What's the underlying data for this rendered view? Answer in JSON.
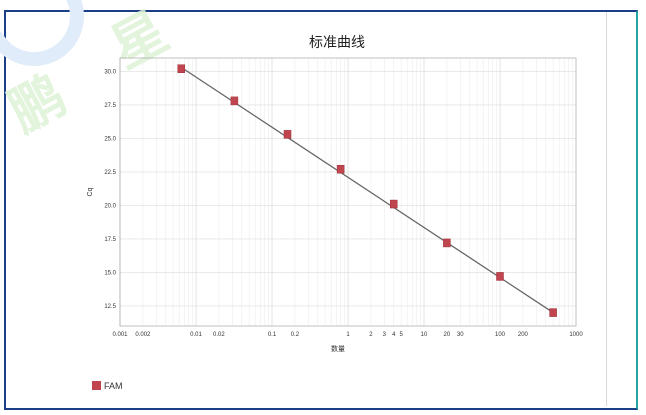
{
  "watermark": {
    "char1": "鹏",
    "char2": "星"
  },
  "chart_data": {
    "type": "scatter",
    "title": "标准曲线",
    "xlabel": "数量",
    "ylabel": "Cq",
    "x_scale": "log",
    "xlim": [
      0.001,
      1000
    ],
    "ylim": [
      11.0,
      31.0
    ],
    "grid": true,
    "x_ticks": [
      {
        "value": 0.001,
        "label": "0.001"
      },
      {
        "value": 0.002,
        "label": "0.002"
      },
      {
        "value": 0.01,
        "label": "0.01"
      },
      {
        "value": 0.02,
        "label": "0.02"
      },
      {
        "value": 0.1,
        "label": "0.1"
      },
      {
        "value": 0.2,
        "label": "0.2"
      },
      {
        "value": 1,
        "label": "1"
      },
      {
        "value": 2,
        "label": "2"
      },
      {
        "value": 3,
        "label": "3"
      },
      {
        "value": 4,
        "label": "4"
      },
      {
        "value": 5,
        "label": "5"
      },
      {
        "value": 10,
        "label": "10"
      },
      {
        "value": 20,
        "label": "20"
      },
      {
        "value": 30,
        "label": "30"
      },
      {
        "value": 100,
        "label": "100"
      },
      {
        "value": 200,
        "label": "200"
      },
      {
        "value": 1000,
        "label": "1000"
      }
    ],
    "y_ticks": [
      12.5,
      15.0,
      17.5,
      20.0,
      22.5,
      25.0,
      27.5,
      30.0
    ],
    "y_tick_labels": [
      "12.5",
      "15.0",
      "17.5",
      "20.0",
      "22.5",
      "25.0",
      "27.5",
      "30.0"
    ],
    "legend_position": "bottom-left",
    "series": [
      {
        "name": "FAM",
        "color": "#c1454f",
        "x": [
          0.0064,
          0.032,
          0.16,
          0.8,
          4,
          20,
          100,
          500
        ],
        "y": [
          30.2,
          27.8,
          25.3,
          22.7,
          20.1,
          17.2,
          14.7,
          12.0
        ]
      }
    ],
    "fit_line": {
      "color": "#666666",
      "x": [
        0.0064,
        500
      ],
      "y": [
        30.3,
        12.0
      ]
    }
  }
}
